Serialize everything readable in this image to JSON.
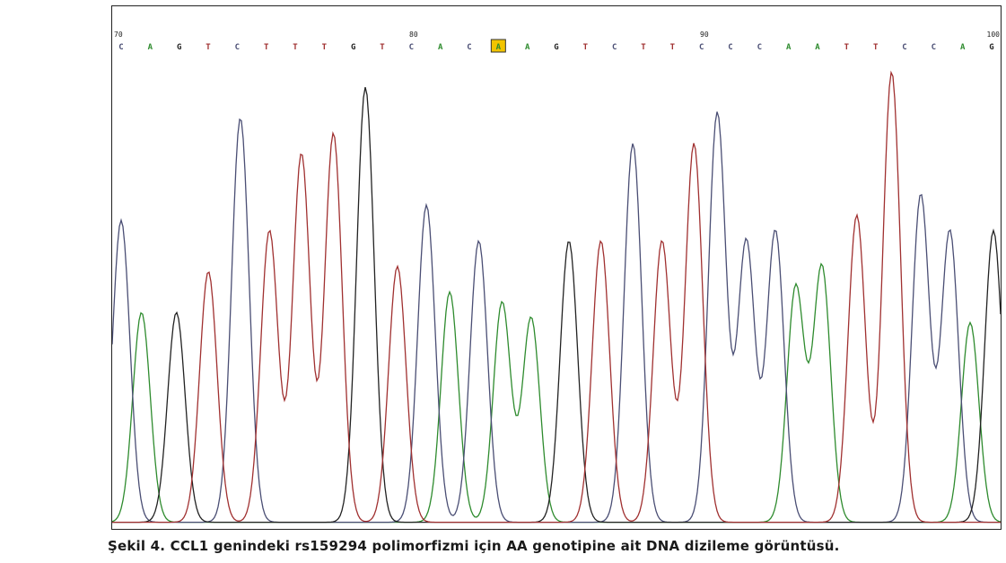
{
  "chart_data": {
    "type": "line",
    "title": "",
    "xlabel": "",
    "ylabel": "",
    "position_labels": [
      {
        "label": "70",
        "at": 70
      },
      {
        "label": "80",
        "at": 80
      },
      {
        "label": "90",
        "at": 90
      },
      {
        "label": "100",
        "at": 100
      }
    ],
    "bases": [
      "C",
      "A",
      "G",
      "T",
      "C",
      "T",
      "T",
      "T",
      "G",
      "T",
      "C",
      "A",
      "C",
      "A",
      "A",
      "G",
      "T",
      "C",
      "T",
      "T",
      "C",
      "C",
      "C",
      "A",
      "A",
      "T",
      "T",
      "C",
      "C",
      "A",
      "G"
    ],
    "highlighted_index": 13,
    "colors": {
      "A": "#2e8b2e",
      "C": "#4a4e74",
      "G": "#222222",
      "T": "#a03030",
      "highlight": "#f2c400"
    },
    "peaks": [
      {
        "base": "C",
        "position": 70.0,
        "height": 0.59
      },
      {
        "base": "A",
        "position": 70.7,
        "height": 0.41
      },
      {
        "base": "G",
        "position": 71.9,
        "height": 0.41
      },
      {
        "base": "T",
        "position": 73.0,
        "height": 0.49
      },
      {
        "base": "C",
        "position": 74.1,
        "height": 0.79
      },
      {
        "base": "T",
        "position": 75.1,
        "height": 0.57
      },
      {
        "base": "T",
        "position": 76.2,
        "height": 0.72
      },
      {
        "base": "T",
        "position": 77.3,
        "height": 0.76
      },
      {
        "base": "G",
        "position": 78.4,
        "height": 0.85
      },
      {
        "base": "T",
        "position": 79.5,
        "height": 0.5
      },
      {
        "base": "C",
        "position": 80.5,
        "height": 0.62
      },
      {
        "base": "A",
        "position": 81.3,
        "height": 0.45
      },
      {
        "base": "C",
        "position": 82.3,
        "height": 0.55
      },
      {
        "base": "A",
        "position": 83.1,
        "height": 0.43
      },
      {
        "base": "A",
        "position": 84.1,
        "height": 0.4
      },
      {
        "base": "G",
        "position": 85.4,
        "height": 0.55
      },
      {
        "base": "T",
        "position": 86.5,
        "height": 0.55
      },
      {
        "base": "C",
        "position": 87.6,
        "height": 0.74
      },
      {
        "base": "T",
        "position": 88.6,
        "height": 0.55
      },
      {
        "base": "T",
        "position": 89.7,
        "height": 0.74
      },
      {
        "base": "C",
        "position": 90.5,
        "height": 0.8
      },
      {
        "base": "C",
        "position": 91.5,
        "height": 0.55
      },
      {
        "base": "C",
        "position": 92.5,
        "height": 0.57
      },
      {
        "base": "A",
        "position": 93.2,
        "height": 0.46
      },
      {
        "base": "A",
        "position": 94.1,
        "height": 0.5
      },
      {
        "base": "T",
        "position": 95.3,
        "height": 0.6
      },
      {
        "base": "T",
        "position": 96.5,
        "height": 0.88
      },
      {
        "base": "C",
        "position": 97.5,
        "height": 0.64
      },
      {
        "base": "C",
        "position": 98.5,
        "height": 0.57
      },
      {
        "base": "A",
        "position": 99.2,
        "height": 0.39
      },
      {
        "base": "G",
        "position": 100.0,
        "height": 0.57
      }
    ]
  },
  "caption": "Şekil 4. CCL1 genindeki rs159294 polimorfizmi için AA genotipine ait DNA dizileme görüntüsü."
}
